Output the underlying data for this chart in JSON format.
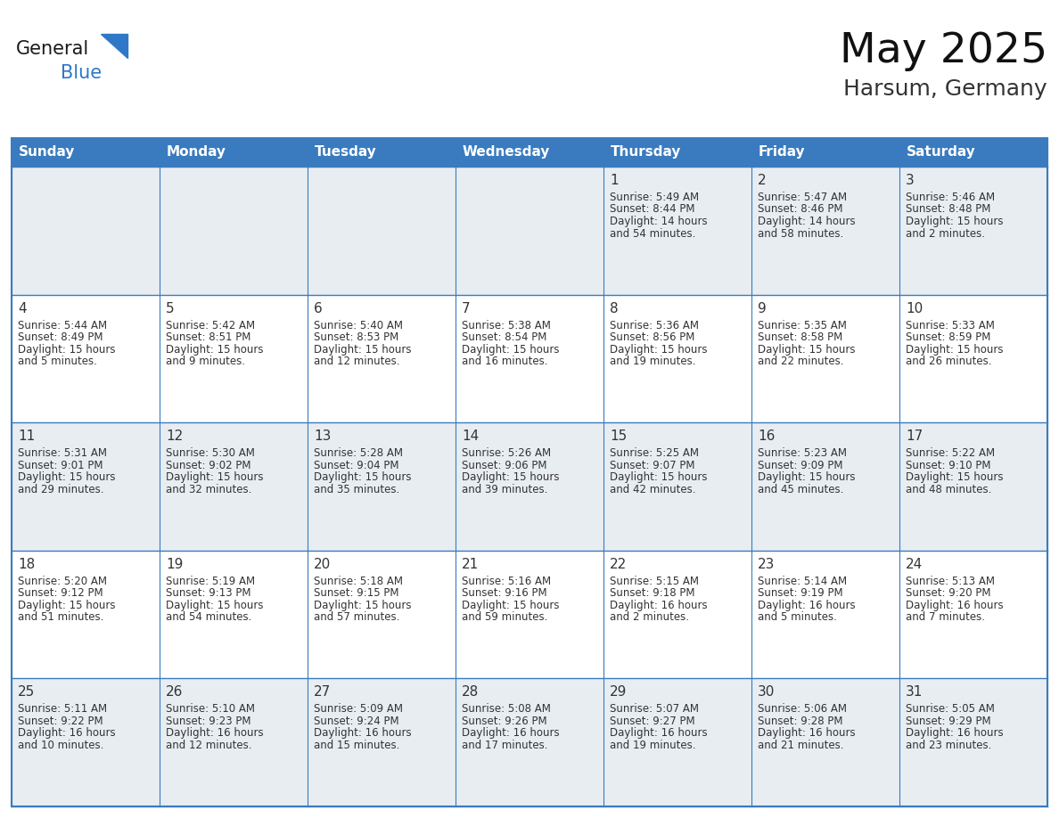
{
  "title": "May 2025",
  "location": "Harsum, Germany",
  "header_bg": "#3a7bbf",
  "header_text_color": "#FFFFFF",
  "cell_bg_white": "#FFFFFF",
  "cell_bg_gray": "#e8edf2",
  "border_color": "#3a7bbf",
  "border_color_light": "#aec6e0",
  "day_number_color": "#333333",
  "info_text_color": "#333333",
  "weekdays": [
    "Sunday",
    "Monday",
    "Tuesday",
    "Wednesday",
    "Thursday",
    "Friday",
    "Saturday"
  ],
  "logo_general_color": "#1a1a1a",
  "logo_blue_color": "#2E78C7",
  "logo_triangle_color": "#2E78C7",
  "calendar": [
    [
      null,
      null,
      null,
      null,
      {
        "day": 1,
        "sunrise": "5:49 AM",
        "sunset": "8:44 PM",
        "daylight_hours": 14,
        "daylight_minutes": 54
      },
      {
        "day": 2,
        "sunrise": "5:47 AM",
        "sunset": "8:46 PM",
        "daylight_hours": 14,
        "daylight_minutes": 58
      },
      {
        "day": 3,
        "sunrise": "5:46 AM",
        "sunset": "8:48 PM",
        "daylight_hours": 15,
        "daylight_minutes": 2
      }
    ],
    [
      {
        "day": 4,
        "sunrise": "5:44 AM",
        "sunset": "8:49 PM",
        "daylight_hours": 15,
        "daylight_minutes": 5
      },
      {
        "day": 5,
        "sunrise": "5:42 AM",
        "sunset": "8:51 PM",
        "daylight_hours": 15,
        "daylight_minutes": 9
      },
      {
        "day": 6,
        "sunrise": "5:40 AM",
        "sunset": "8:53 PM",
        "daylight_hours": 15,
        "daylight_minutes": 12
      },
      {
        "day": 7,
        "sunrise": "5:38 AM",
        "sunset": "8:54 PM",
        "daylight_hours": 15,
        "daylight_minutes": 16
      },
      {
        "day": 8,
        "sunrise": "5:36 AM",
        "sunset": "8:56 PM",
        "daylight_hours": 15,
        "daylight_minutes": 19
      },
      {
        "day": 9,
        "sunrise": "5:35 AM",
        "sunset": "8:58 PM",
        "daylight_hours": 15,
        "daylight_minutes": 22
      },
      {
        "day": 10,
        "sunrise": "5:33 AM",
        "sunset": "8:59 PM",
        "daylight_hours": 15,
        "daylight_minutes": 26
      }
    ],
    [
      {
        "day": 11,
        "sunrise": "5:31 AM",
        "sunset": "9:01 PM",
        "daylight_hours": 15,
        "daylight_minutes": 29
      },
      {
        "day": 12,
        "sunrise": "5:30 AM",
        "sunset": "9:02 PM",
        "daylight_hours": 15,
        "daylight_minutes": 32
      },
      {
        "day": 13,
        "sunrise": "5:28 AM",
        "sunset": "9:04 PM",
        "daylight_hours": 15,
        "daylight_minutes": 35
      },
      {
        "day": 14,
        "sunrise": "5:26 AM",
        "sunset": "9:06 PM",
        "daylight_hours": 15,
        "daylight_minutes": 39
      },
      {
        "day": 15,
        "sunrise": "5:25 AM",
        "sunset": "9:07 PM",
        "daylight_hours": 15,
        "daylight_minutes": 42
      },
      {
        "day": 16,
        "sunrise": "5:23 AM",
        "sunset": "9:09 PM",
        "daylight_hours": 15,
        "daylight_minutes": 45
      },
      {
        "day": 17,
        "sunrise": "5:22 AM",
        "sunset": "9:10 PM",
        "daylight_hours": 15,
        "daylight_minutes": 48
      }
    ],
    [
      {
        "day": 18,
        "sunrise": "5:20 AM",
        "sunset": "9:12 PM",
        "daylight_hours": 15,
        "daylight_minutes": 51
      },
      {
        "day": 19,
        "sunrise": "5:19 AM",
        "sunset": "9:13 PM",
        "daylight_hours": 15,
        "daylight_minutes": 54
      },
      {
        "day": 20,
        "sunrise": "5:18 AM",
        "sunset": "9:15 PM",
        "daylight_hours": 15,
        "daylight_minutes": 57
      },
      {
        "day": 21,
        "sunrise": "5:16 AM",
        "sunset": "9:16 PM",
        "daylight_hours": 15,
        "daylight_minutes": 59
      },
      {
        "day": 22,
        "sunrise": "5:15 AM",
        "sunset": "9:18 PM",
        "daylight_hours": 16,
        "daylight_minutes": 2
      },
      {
        "day": 23,
        "sunrise": "5:14 AM",
        "sunset": "9:19 PM",
        "daylight_hours": 16,
        "daylight_minutes": 5
      },
      {
        "day": 24,
        "sunrise": "5:13 AM",
        "sunset": "9:20 PM",
        "daylight_hours": 16,
        "daylight_minutes": 7
      }
    ],
    [
      {
        "day": 25,
        "sunrise": "5:11 AM",
        "sunset": "9:22 PM",
        "daylight_hours": 16,
        "daylight_minutes": 10
      },
      {
        "day": 26,
        "sunrise": "5:10 AM",
        "sunset": "9:23 PM",
        "daylight_hours": 16,
        "daylight_minutes": 12
      },
      {
        "day": 27,
        "sunrise": "5:09 AM",
        "sunset": "9:24 PM",
        "daylight_hours": 16,
        "daylight_minutes": 15
      },
      {
        "day": 28,
        "sunrise": "5:08 AM",
        "sunset": "9:26 PM",
        "daylight_hours": 16,
        "daylight_minutes": 17
      },
      {
        "day": 29,
        "sunrise": "5:07 AM",
        "sunset": "9:27 PM",
        "daylight_hours": 16,
        "daylight_minutes": 19
      },
      {
        "day": 30,
        "sunrise": "5:06 AM",
        "sunset": "9:28 PM",
        "daylight_hours": 16,
        "daylight_minutes": 21
      },
      {
        "day": 31,
        "sunrise": "5:05 AM",
        "sunset": "9:29 PM",
        "daylight_hours": 16,
        "daylight_minutes": 23
      }
    ]
  ]
}
